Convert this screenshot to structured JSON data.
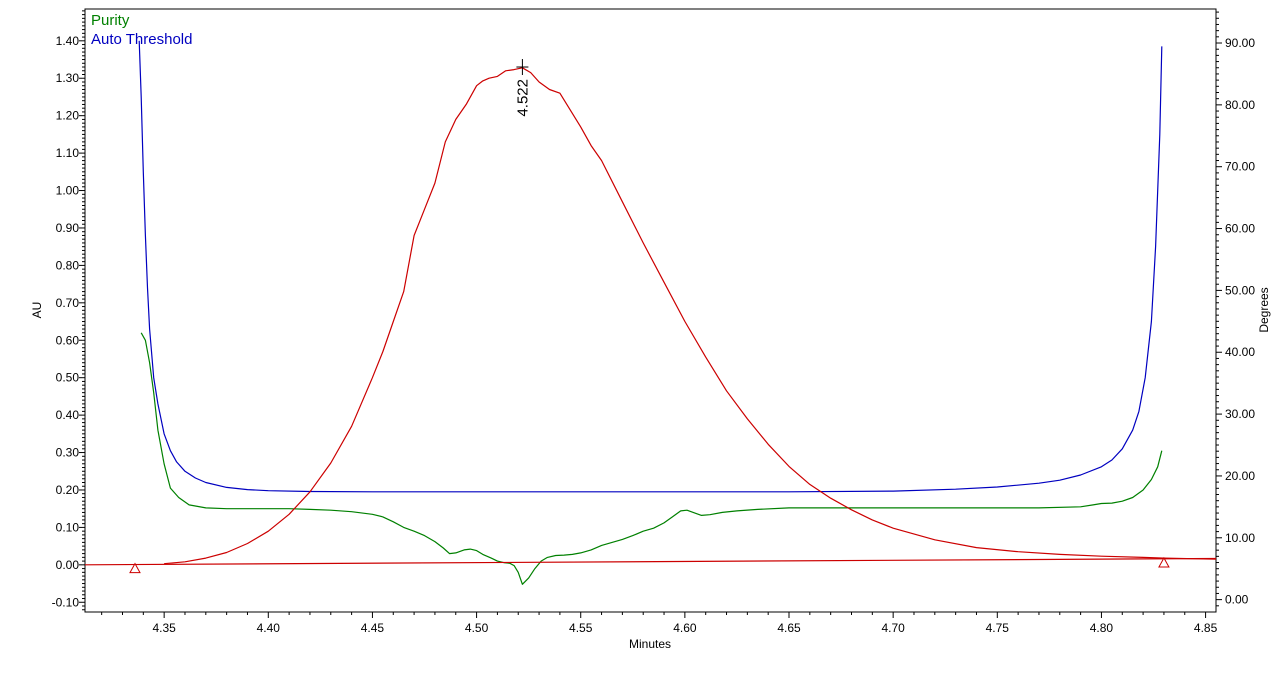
{
  "chart_data": {
    "type": "line",
    "title": "",
    "xlabel": "Minutes",
    "ylabel_left": "AU",
    "ylabel_right": "Degrees",
    "xlim": [
      4.312,
      4.855
    ],
    "ylim_left": [
      -0.126,
      1.485
    ],
    "ylim_right": [
      -2.0,
      95.5
    ],
    "x_ticks": [
      "4.35",
      "4.40",
      "4.45",
      "4.50",
      "4.55",
      "4.60",
      "4.65",
      "4.70",
      "4.75",
      "4.80",
      "4.85"
    ],
    "y_left_ticks": [
      "-0.10",
      "0.00",
      "0.10",
      "0.20",
      "0.30",
      "0.40",
      "0.50",
      "0.60",
      "0.70",
      "0.80",
      "0.90",
      "1.00",
      "1.10",
      "1.20",
      "1.30",
      "1.40"
    ],
    "y_right_ticks": [
      "0.00",
      "10.00",
      "20.00",
      "30.00",
      "40.00",
      "50.00",
      "60.00",
      "70.00",
      "80.00",
      "90.00"
    ],
    "grid": false,
    "legend_position": "top-left",
    "legend": [
      {
        "name": "Purity",
        "color": "#008000"
      },
      {
        "name": "Auto Threshold",
        "color": "#0000c0"
      }
    ],
    "peak_label": {
      "text": "4.522",
      "x": 4.522,
      "y": 1.33
    },
    "series": [
      {
        "name": "Purity",
        "axis": "left",
        "color": "#008000",
        "x": [
          4.339,
          4.341,
          4.343,
          4.345,
          4.347,
          4.35,
          4.353,
          4.357,
          4.362,
          4.37,
          4.38,
          4.39,
          4.4,
          4.41,
          4.42,
          4.43,
          4.44,
          4.45,
          4.455,
          4.46,
          4.465,
          4.47,
          4.475,
          4.48,
          4.484,
          4.487,
          4.49,
          4.494,
          4.497,
          4.5,
          4.503,
          4.507,
          4.51,
          4.513,
          4.516,
          4.518,
          4.52,
          4.522,
          4.525,
          4.528,
          4.531,
          4.534,
          4.538,
          4.542,
          4.546,
          4.55,
          4.555,
          4.56,
          4.565,
          4.57,
          4.575,
          4.58,
          4.585,
          4.59,
          4.594,
          4.598,
          4.601,
          4.604,
          4.608,
          4.612,
          4.618,
          4.625,
          4.635,
          4.65,
          4.67,
          4.69,
          4.71,
          4.73,
          4.75,
          4.77,
          4.79,
          4.796,
          4.8,
          4.805,
          4.81,
          4.815,
          4.82,
          4.824,
          4.827,
          4.829
        ],
        "y": [
          0.62,
          0.6,
          0.54,
          0.46,
          0.36,
          0.27,
          0.205,
          0.18,
          0.16,
          0.152,
          0.15,
          0.15,
          0.15,
          0.15,
          0.148,
          0.146,
          0.142,
          0.135,
          0.128,
          0.115,
          0.1,
          0.09,
          0.078,
          0.062,
          0.045,
          0.03,
          0.032,
          0.04,
          0.042,
          0.038,
          0.028,
          0.018,
          0.01,
          0.006,
          0.004,
          -0.002,
          -0.02,
          -0.052,
          -0.035,
          -0.01,
          0.01,
          0.02,
          0.025,
          0.026,
          0.028,
          0.032,
          0.04,
          0.052,
          0.06,
          0.068,
          0.078,
          0.09,
          0.098,
          0.112,
          0.128,
          0.144,
          0.146,
          0.14,
          0.132,
          0.134,
          0.14,
          0.144,
          0.148,
          0.152,
          0.152,
          0.152,
          0.152,
          0.152,
          0.152,
          0.152,
          0.155,
          0.16,
          0.164,
          0.165,
          0.17,
          0.18,
          0.2,
          0.228,
          0.262,
          0.305
        ]
      },
      {
        "name": "Auto Threshold",
        "axis": "left",
        "color": "#0000c0",
        "x": [
          4.338,
          4.339,
          4.34,
          4.341,
          4.342,
          4.343,
          4.345,
          4.347,
          4.35,
          4.353,
          4.356,
          4.36,
          4.365,
          4.37,
          4.38,
          4.39,
          4.4,
          4.42,
          4.45,
          4.5,
          4.55,
          4.6,
          4.65,
          4.7,
          4.73,
          4.75,
          4.77,
          4.78,
          4.79,
          4.8,
          4.805,
          4.81,
          4.815,
          4.818,
          4.821,
          4.824,
          4.826,
          4.828,
          4.829
        ],
        "y": [
          1.4,
          1.25,
          1.05,
          0.88,
          0.74,
          0.63,
          0.5,
          0.43,
          0.35,
          0.305,
          0.275,
          0.25,
          0.232,
          0.22,
          0.207,
          0.201,
          0.198,
          0.196,
          0.195,
          0.195,
          0.195,
          0.195,
          0.195,
          0.197,
          0.202,
          0.208,
          0.218,
          0.226,
          0.24,
          0.262,
          0.28,
          0.31,
          0.36,
          0.41,
          0.5,
          0.65,
          0.85,
          1.15,
          1.385
        ]
      },
      {
        "name": "Chromatogram",
        "axis": "left",
        "color": "#cc0000",
        "x": [
          4.35,
          4.36,
          4.37,
          4.38,
          4.39,
          4.4,
          4.41,
          4.42,
          4.43,
          4.44,
          4.45,
          4.455,
          4.46,
          4.465,
          4.47,
          4.475,
          4.48,
          4.485,
          4.49,
          4.495,
          4.5,
          4.503,
          4.506,
          4.51,
          4.514,
          4.518,
          4.522,
          4.526,
          4.53,
          4.535,
          4.54,
          4.545,
          4.55,
          4.555,
          4.56,
          4.57,
          4.58,
          4.59,
          4.6,
          4.61,
          4.62,
          4.63,
          4.64,
          4.65,
          4.66,
          4.67,
          4.68,
          4.69,
          4.7,
          4.72,
          4.74,
          4.76,
          4.78,
          4.8,
          4.82,
          4.83,
          4.855
        ],
        "y": [
          0.003,
          0.008,
          0.018,
          0.033,
          0.057,
          0.09,
          0.135,
          0.195,
          0.272,
          0.37,
          0.5,
          0.57,
          0.65,
          0.73,
          0.88,
          0.95,
          1.02,
          1.13,
          1.19,
          1.23,
          1.28,
          1.293,
          1.3,
          1.305,
          1.32,
          1.323,
          1.328,
          1.315,
          1.29,
          1.27,
          1.26,
          1.215,
          1.17,
          1.12,
          1.08,
          0.97,
          0.86,
          0.755,
          0.65,
          0.555,
          0.465,
          0.39,
          0.322,
          0.263,
          0.215,
          0.178,
          0.147,
          0.12,
          0.098,
          0.067,
          0.046,
          0.035,
          0.028,
          0.023,
          0.02,
          0.018,
          0.015
        ]
      },
      {
        "name": "Baseline",
        "axis": "left",
        "color": "#cc0000",
        "x": [
          4.312,
          4.855
        ],
        "y": [
          0.0,
          0.017
        ]
      }
    ],
    "markers": [
      {
        "type": "triangle",
        "x": 4.336,
        "y": -0.01,
        "color": "#cc0000"
      },
      {
        "type": "triangle",
        "x": 4.83,
        "y": 0.005,
        "color": "#cc0000"
      }
    ]
  }
}
